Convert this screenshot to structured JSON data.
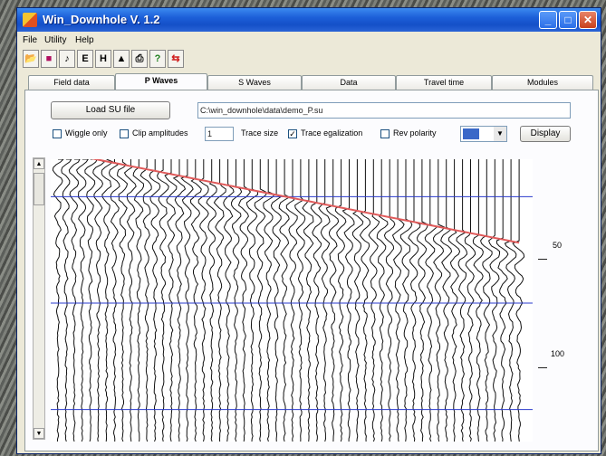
{
  "window": {
    "title": "Win_Downhole V. 1.2",
    "minimize": "_",
    "maximize": "□",
    "close": "✕"
  },
  "menu": [
    "File",
    "Utility",
    "Help"
  ],
  "toolbar": [
    {
      "icon": "open-folder-icon",
      "glyph": "📂"
    },
    {
      "icon": "stop-square-icon",
      "glyph": "■"
    },
    {
      "icon": "music-note-icon",
      "glyph": "♪"
    },
    {
      "icon": "letter-e-icon",
      "glyph": "E"
    },
    {
      "icon": "letter-h-icon",
      "glyph": "H"
    },
    {
      "icon": "triangle-icon",
      "glyph": "▲"
    },
    {
      "icon": "printer-icon",
      "glyph": "⎙"
    },
    {
      "icon": "help-icon",
      "glyph": "?"
    },
    {
      "icon": "exit-icon",
      "glyph": "⇆"
    }
  ],
  "tabs": [
    "Field data",
    "P Waves",
    "S Waves",
    "Data",
    "Travel time",
    "Modules"
  ],
  "active_tab": "P Waves",
  "load_button": "Load SU file",
  "file_path": "C:\\win_downhole\\data\\demo_P.su",
  "options": {
    "wiggle_only": {
      "label": "Wiggle only",
      "checked": false
    },
    "clip_amplitudes": {
      "label": "Clip amplitudes",
      "checked": false
    },
    "trace_size_value": "1",
    "trace_size_label": "Trace size",
    "trace_equalization": {
      "label": "Trace egalization",
      "checked": true
    },
    "rev_polarity": {
      "label": "Rev polarity",
      "checked": false
    }
  },
  "display_button": "Display",
  "colors": {
    "pick_line": "#e05a5a",
    "grid_line": "#2a3acc",
    "trace": "#111111"
  },
  "axis": {
    "label_50": "50",
    "label_100": "100"
  },
  "seismogram": {
    "trace_count": 58,
    "pick_start_ms": 4,
    "pick_end_ms": 45,
    "gridlines_ms": [
      12,
      60,
      108
    ]
  }
}
